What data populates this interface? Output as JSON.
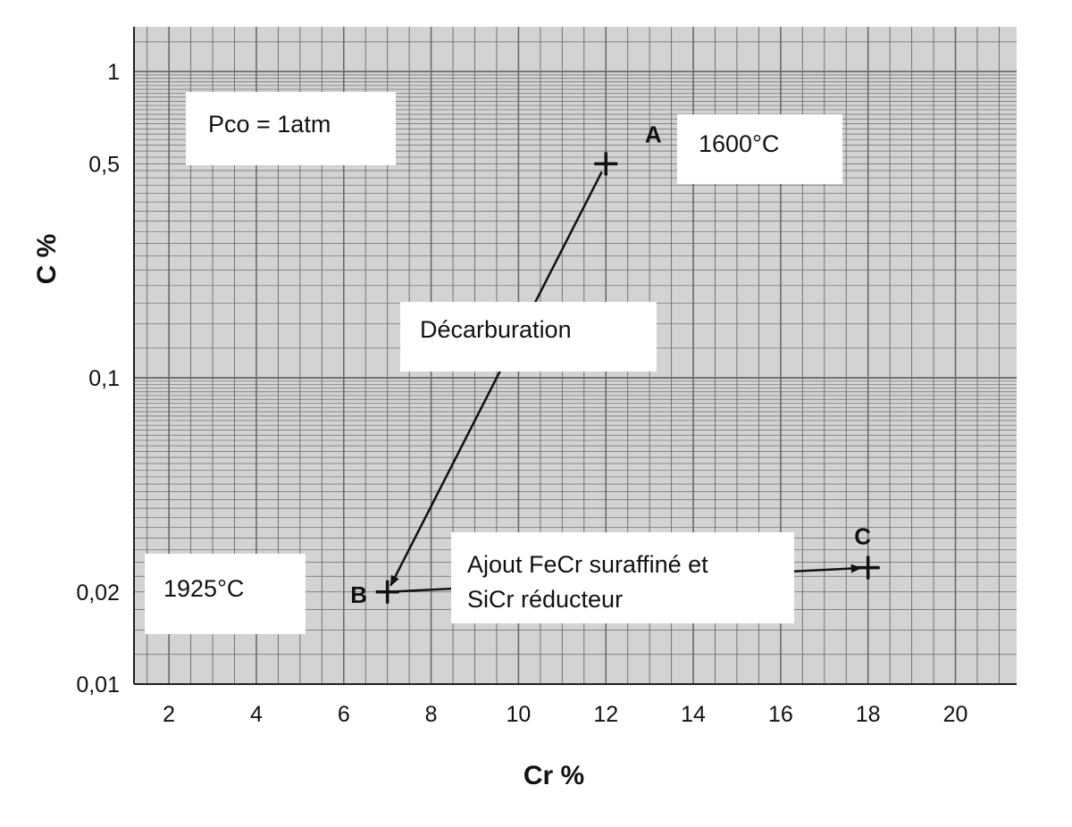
{
  "chart_data": {
    "type": "scatter",
    "xlabel": "Cr %",
    "ylabel": "C %",
    "y_scale": "log",
    "xlim": [
      1.2,
      21.4
    ],
    "ylim": [
      0.01,
      1.4
    ],
    "x_ticks": [
      2,
      4,
      6,
      8,
      10,
      12,
      14,
      16,
      18,
      20
    ],
    "x_tick_labels": [
      "2",
      "4",
      "6",
      "8",
      "10",
      "12",
      "14",
      "16",
      "18",
      "20"
    ],
    "y_ticks": [
      0.01,
      0.02,
      0.1,
      0.5,
      1
    ],
    "y_tick_labels": [
      "0,01",
      "0,02",
      "0,1",
      "0,5",
      "1"
    ],
    "grid": true,
    "points": [
      {
        "label": "A",
        "x": 12,
        "y": 0.5
      },
      {
        "label": "B",
        "x": 7,
        "y": 0.02
      },
      {
        "label": "C",
        "x": 18,
        "y": 0.024
      }
    ],
    "arrows": [
      {
        "from": "A",
        "to": "B"
      },
      {
        "from": "B",
        "to": "C"
      }
    ],
    "annotations": {
      "pressure": "Pco = 1atm",
      "temp_a": "1600°C",
      "temp_b": "1925°C",
      "process_ab": "Décarburation",
      "process_bc_line1": "Ajout FeCr suraffiné et",
      "process_bc_line2": "SiCr réducteur"
    }
  },
  "colors": {
    "grid": "#6a6a6a",
    "grid_band": "#d3d3d3",
    "ink": "#111111",
    "label_box": "#ffffff"
  }
}
